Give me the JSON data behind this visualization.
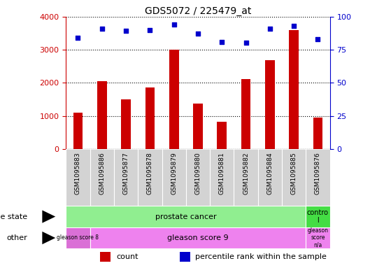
{
  "title": "GDS5072 / 225479_at",
  "samples": [
    "GSM1095883",
    "GSM1095886",
    "GSM1095877",
    "GSM1095878",
    "GSM1095879",
    "GSM1095880",
    "GSM1095881",
    "GSM1095882",
    "GSM1095884",
    "GSM1095885",
    "GSM1095876"
  ],
  "counts": [
    1100,
    2050,
    1500,
    1850,
    3000,
    1380,
    820,
    2120,
    2680,
    3600,
    960
  ],
  "percentiles": [
    84,
    91,
    89,
    90,
    94,
    87,
    81,
    80,
    91,
    93,
    83
  ],
  "ylim_left": [
    0,
    4000
  ],
  "ylim_right": [
    0,
    100
  ],
  "yticks_left": [
    0,
    1000,
    2000,
    3000,
    4000
  ],
  "yticks_right": [
    0,
    25,
    50,
    75,
    100
  ],
  "bar_color": "#cc0000",
  "dot_color": "#0000cc",
  "bg_color": "#ffffff",
  "plot_bg": "#ffffff",
  "bar_width": 0.4,
  "gleason8_color": "#da70d6",
  "gleason9_color": "#ee82ee",
  "prostate_cancer_color": "#90ee90",
  "control_color": "#44dd44",
  "tick_bg_color": "#d3d3d3"
}
